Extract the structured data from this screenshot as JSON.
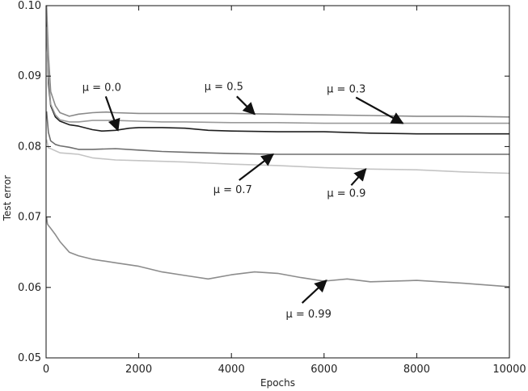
{
  "chart_data": {
    "type": "line",
    "title": "",
    "xlabel": "Epochs",
    "ylabel": "Test error",
    "xlim": [
      0,
      10000
    ],
    "ylim": [
      0.05,
      0.1
    ],
    "xticks": [
      0,
      2000,
      4000,
      6000,
      8000,
      10000
    ],
    "xtick_labels": [
      "0",
      "2000",
      "4000",
      "6000",
      "8000",
      "10000"
    ],
    "yticks": [
      0.05,
      0.06,
      0.07,
      0.08,
      0.09,
      0.1
    ],
    "ytick_labels": [
      "0.05",
      "0.06",
      "0.07",
      "0.08",
      "0.09",
      "0.10"
    ],
    "grid": false,
    "legend": "none",
    "series": [
      {
        "name": "μ = 0.0",
        "color": "#1e1e1e",
        "x": [
          10,
          50,
          100,
          200,
          300,
          500,
          700,
          1000,
          1200,
          1500,
          1800,
          2000,
          2500,
          3000,
          3500,
          4000,
          5000,
          6000,
          7000,
          8000,
          9000,
          10000
        ],
        "y": [
          0.098,
          0.089,
          0.0858,
          0.0842,
          0.0836,
          0.0831,
          0.0829,
          0.0824,
          0.0822,
          0.0823,
          0.0826,
          0.0827,
          0.0827,
          0.0826,
          0.0823,
          0.0822,
          0.0821,
          0.0821,
          0.0819,
          0.0818,
          0.0818,
          0.0818
        ]
      },
      {
        "name": "μ = 0.5",
        "color": "#8a8a8a",
        "x": [
          10,
          50,
          100,
          200,
          300,
          500,
          700,
          1000,
          1300,
          1500,
          2000,
          2500,
          3000,
          3500,
          4000,
          5000,
          6000,
          7000,
          8000,
          9000,
          10000
        ],
        "y": [
          0.1,
          0.093,
          0.0878,
          0.0858,
          0.0848,
          0.0843,
          0.0846,
          0.0848,
          0.0849,
          0.0848,
          0.0847,
          0.0847,
          0.0847,
          0.0847,
          0.0847,
          0.0846,
          0.0845,
          0.0844,
          0.0843,
          0.0843,
          0.0842
        ]
      },
      {
        "name": "μ = 0.3",
        "color": "#9a9a9a",
        "x": [
          10,
          50,
          100,
          200,
          300,
          500,
          700,
          1000,
          1500,
          2000,
          2500,
          3000,
          4000,
          5000,
          6000,
          7000,
          8000,
          9000,
          10000
        ],
        "y": [
          0.097,
          0.09,
          0.086,
          0.0845,
          0.0838,
          0.0835,
          0.0835,
          0.0837,
          0.0837,
          0.0836,
          0.0835,
          0.0835,
          0.0834,
          0.0834,
          0.0833,
          0.0833,
          0.0833,
          0.0833,
          0.0833
        ]
      },
      {
        "name": "μ = 0.7",
        "color": "#6e6e6e",
        "x": [
          10,
          50,
          100,
          200,
          300,
          500,
          700,
          1000,
          1500,
          2000,
          2500,
          3000,
          4000,
          5000,
          6000,
          7000,
          8000,
          9000,
          10000
        ],
        "y": [
          0.085,
          0.082,
          0.0808,
          0.0803,
          0.0801,
          0.0799,
          0.0796,
          0.0796,
          0.0797,
          0.0795,
          0.0793,
          0.0792,
          0.079,
          0.0789,
          0.0789,
          0.0789,
          0.0789,
          0.0789,
          0.0789
        ]
      },
      {
        "name": "μ = 0.9",
        "color": "#c4c4c4",
        "x": [
          10,
          50,
          100,
          200,
          300,
          500,
          700,
          1000,
          1500,
          2000,
          3000,
          4000,
          5000,
          6000,
          7000,
          8000,
          9000,
          10000
        ],
        "y": [
          0.081,
          0.0798,
          0.0797,
          0.0794,
          0.0791,
          0.079,
          0.0789,
          0.0784,
          0.0781,
          0.078,
          0.0778,
          0.0775,
          0.0773,
          0.077,
          0.0768,
          0.0767,
          0.0764,
          0.0762
        ]
      },
      {
        "name": "μ = 0.99",
        "color": "#8c8c8c",
        "x": [
          10,
          30,
          50,
          100,
          200,
          300,
          500,
          700,
          1000,
          1500,
          2000,
          2500,
          3000,
          3500,
          4000,
          4500,
          5000,
          5500,
          6000,
          6500,
          7000,
          8000,
          9000,
          10000
        ],
        "y": [
          0.07,
          0.069,
          0.0688,
          0.0684,
          0.0675,
          0.0665,
          0.065,
          0.0645,
          0.064,
          0.0635,
          0.063,
          0.0622,
          0.0617,
          0.0612,
          0.0618,
          0.0622,
          0.062,
          0.0614,
          0.0609,
          0.0612,
          0.0608,
          0.061,
          0.0606,
          0.0601
        ]
      }
    ],
    "annotations": [
      {
        "text": "μ = 0.0",
        "series": "μ = 0.0",
        "x": 1550,
        "y": 0.0823
      },
      {
        "text": "μ = 0.5",
        "series": "μ = 0.5",
        "x": 4500,
        "y": 0.0846
      },
      {
        "text": "μ = 0.3",
        "series": "μ = 0.3",
        "x": 7700,
        "y": 0.0833
      },
      {
        "text": "μ = 0.7",
        "series": "μ = 0.7",
        "x": 4900,
        "y": 0.0789
      },
      {
        "text": "μ = 0.9",
        "series": "μ = 0.9",
        "x": 6900,
        "y": 0.0768
      },
      {
        "text": "μ = 0.99",
        "series": "μ = 0.99",
        "x": 6050,
        "y": 0.061
      }
    ]
  }
}
